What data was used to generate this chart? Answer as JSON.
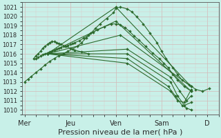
{
  "bg_color": "#c8f0e8",
  "grid_color_major": "#d4b8b8",
  "grid_color_minor": "#dcc8c8",
  "line_color": "#2d6a2d",
  "marker": "D",
  "markersize": 2.0,
  "linewidth": 0.8,
  "title": "Pression niveau de la mer( hPa )",
  "title_fontsize": 8,
  "xtick_labels": [
    "Mer",
    "Jeu",
    "Ven",
    "Sam",
    "D"
  ],
  "xtick_positions": [
    0,
    2,
    4,
    6,
    8
  ],
  "ylim": [
    1009.5,
    1021.5
  ],
  "xlim": [
    -0.1,
    8.5
  ],
  "yticks": [
    1010,
    1011,
    1012,
    1013,
    1014,
    1015,
    1016,
    1017,
    1018,
    1019,
    1020,
    1021
  ],
  "series": [
    {
      "x": [
        0.0,
        0.15,
        0.3,
        0.5,
        0.7,
        0.9,
        1.1,
        1.3,
        1.5,
        1.7,
        1.9,
        2.1,
        2.3,
        2.5,
        2.7,
        2.9,
        3.1,
        3.3,
        3.6,
        3.9,
        4.0,
        4.2,
        4.5,
        4.7,
        4.9,
        5.2,
        5.5,
        5.8,
        6.0,
        6.2,
        6.5,
        6.7,
        6.9,
        7.2,
        7.5,
        7.8,
        8.1
      ],
      "y": [
        1013.0,
        1013.3,
        1013.6,
        1014.0,
        1014.4,
        1014.8,
        1015.2,
        1015.5,
        1015.8,
        1016.0,
        1016.3,
        1016.5,
        1016.8,
        1017.2,
        1017.7,
        1018.2,
        1018.7,
        1019.2,
        1019.8,
        1020.4,
        1020.9,
        1021.0,
        1020.8,
        1020.5,
        1020.0,
        1019.2,
        1018.2,
        1017.2,
        1016.3,
        1015.5,
        1014.5,
        1013.8,
        1013.2,
        1012.7,
        1012.2,
        1012.0,
        1012.3
      ]
    },
    {
      "x": [
        0.5,
        0.6,
        0.7,
        0.8,
        0.9,
        1.0,
        1.1,
        1.2,
        1.3,
        1.4,
        1.5,
        1.6,
        1.7,
        1.8,
        1.9,
        2.0,
        2.1,
        2.2,
        2.4,
        2.6,
        2.8,
        3.0,
        3.2,
        3.5,
        3.8,
        4.0,
        4.2,
        4.4,
        4.6,
        4.8,
        5.0,
        5.3,
        5.6,
        5.9,
        6.1,
        6.3,
        6.5,
        6.7,
        7.0,
        7.3
      ],
      "y": [
        1015.5,
        1015.6,
        1015.8,
        1015.9,
        1016.0,
        1016.1,
        1016.2,
        1016.3,
        1016.4,
        1016.5,
        1016.6,
        1016.7,
        1016.8,
        1016.8,
        1016.9,
        1017.0,
        1017.1,
        1017.2,
        1017.4,
        1017.7,
        1018.0,
        1018.3,
        1018.6,
        1018.9,
        1019.2,
        1019.2,
        1019.1,
        1018.8,
        1018.4,
        1017.9,
        1017.5,
        1016.8,
        1016.1,
        1015.5,
        1015.0,
        1014.5,
        1013.8,
        1013.2,
        1012.5,
        1012.0
      ]
    },
    {
      "x": [
        1.0,
        4.0,
        7.3
      ],
      "y": [
        1016.0,
        1021.0,
        1012.5
      ]
    },
    {
      "x": [
        1.0,
        4.0,
        7.3
      ],
      "y": [
        1016.0,
        1019.5,
        1012.0
      ]
    },
    {
      "x": [
        1.0,
        4.2,
        7.3
      ],
      "y": [
        1016.0,
        1018.0,
        1012.5
      ]
    },
    {
      "x": [
        1.0,
        4.5,
        6.4,
        6.8,
        7.1,
        7.3
      ],
      "y": [
        1016.0,
        1016.5,
        1013.5,
        1012.0,
        1011.0,
        1011.5
      ]
    },
    {
      "x": [
        1.0,
        4.5,
        6.4,
        6.7,
        7.0,
        7.3
      ],
      "y": [
        1016.0,
        1016.0,
        1013.0,
        1011.5,
        1010.5,
        1010.8
      ]
    },
    {
      "x": [
        1.0,
        4.5,
        6.3,
        6.6,
        6.9,
        7.1,
        7.3
      ],
      "y": [
        1016.0,
        1015.5,
        1012.5,
        1011.5,
        1010.5,
        1010.2,
        1010.0
      ]
    },
    {
      "x": [
        1.0,
        4.5,
        6.4,
        6.7,
        7.0,
        7.3
      ],
      "y": [
        1016.0,
        1015.0,
        1012.0,
        1011.0,
        1010.8,
        1012.2
      ]
    },
    {
      "x": [
        0.4,
        0.5,
        0.6,
        0.7,
        0.8,
        0.9,
        1.0,
        1.1,
        1.2,
        1.3,
        1.4,
        1.5,
        1.6,
        1.8,
        2.0,
        2.2,
        2.5,
        2.8
      ],
      "y": [
        1015.5,
        1015.8,
        1016.0,
        1016.3,
        1016.6,
        1016.8,
        1017.0,
        1017.2,
        1017.3,
        1017.3,
        1017.2,
        1017.1,
        1017.0,
        1016.8,
        1016.6,
        1016.4,
        1016.2,
        1016.0
      ]
    }
  ]
}
